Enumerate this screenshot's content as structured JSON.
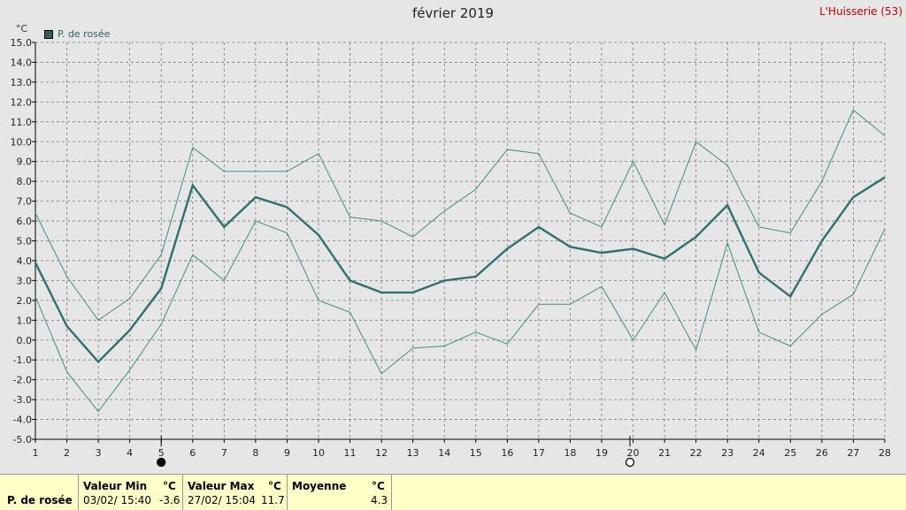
{
  "title": "février 2019",
  "station": "L'Huisserie (53)",
  "chart_data": {
    "type": "line",
    "x": [
      1,
      2,
      3,
      4,
      5,
      6,
      7,
      8,
      9,
      10,
      11,
      12,
      13,
      14,
      15,
      16,
      17,
      18,
      19,
      20,
      21,
      22,
      23,
      24,
      25,
      26,
      27,
      28
    ],
    "series": [
      {
        "name": "P. de rosée",
        "role": "mean",
        "color": "#2f6f6f",
        "values": [
          3.9,
          0.7,
          -1.1,
          0.5,
          2.6,
          7.8,
          5.7,
          7.2,
          6.7,
          5.3,
          3.0,
          2.4,
          2.4,
          3.0,
          3.2,
          4.6,
          5.7,
          4.7,
          4.4,
          4.6,
          4.1,
          5.2,
          6.8,
          3.4,
          2.2,
          5.0,
          7.2,
          8.2
        ]
      },
      {
        "name": "",
        "role": "max",
        "color": "#3f8f7f",
        "values": [
          6.4,
          3.2,
          1.0,
          2.1,
          4.3,
          9.7,
          8.5,
          8.5,
          8.5,
          9.4,
          6.2,
          6.0,
          5.2,
          6.5,
          7.6,
          9.6,
          9.4,
          6.4,
          5.7,
          9.0,
          5.8,
          10.0,
          8.8,
          5.7,
          5.4,
          8.0,
          11.6,
          10.3
        ]
      },
      {
        "name": "",
        "role": "min",
        "color": "#3f8f7f",
        "values": [
          2.2,
          -1.6,
          -3.6,
          -1.5,
          0.8,
          4.3,
          3.0,
          6.0,
          5.4,
          2.0,
          1.4,
          -1.7,
          -0.4,
          -0.3,
          0.4,
          -0.2,
          1.8,
          1.8,
          2.7,
          0.0,
          2.4,
          -0.5,
          4.9,
          0.4,
          -0.3,
          1.3,
          2.3,
          5.6
        ]
      }
    ],
    "ylim": [
      -5.0,
      15.0
    ],
    "yticks": [
      "15.0",
      "14.0",
      "13.0",
      "12.0",
      "11.0",
      "10.0",
      "9.0",
      "8.0",
      "7.0",
      "6.0",
      "5.0",
      "4.0",
      "3.0",
      "2.0",
      "1.0",
      "0.0",
      "-1.0",
      "-2.0",
      "-3.0",
      "-4.0",
      "-5.0"
    ],
    "ylabel": "°C",
    "grid": true,
    "legend": "top-left",
    "moon_phases": [
      {
        "day": 5,
        "phase": "new"
      },
      {
        "day": 19.9,
        "phase": "full"
      }
    ]
  },
  "table": {
    "row_label": "P. de rosée",
    "min_header": "Valeur Min",
    "min_unit": "°C",
    "min_date": "03/02/ 15:40",
    "min_value": "-3.6",
    "max_header": "Valeur Max",
    "max_unit": "°C",
    "max_date": "27/02/ 15:04",
    "max_value": "11.7",
    "avg_header": "Moyenne",
    "avg_unit": "°C",
    "avg_value": "4.3"
  }
}
